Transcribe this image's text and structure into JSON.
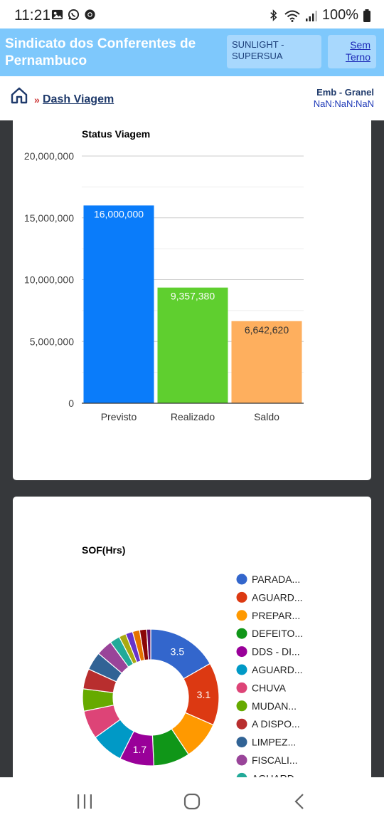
{
  "status_bar": {
    "time": "11:21",
    "battery": "100%",
    "icons": [
      "image-icon",
      "whatsapp-icon",
      "chrome-icon",
      "bluetooth-icon",
      "wifi-icon",
      "signal-icon",
      "battery-icon"
    ]
  },
  "header": {
    "title": "Sindicato dos Conferentes de Pernambuco",
    "ship": "SUNLIGHT - SUPERSUA",
    "terno": "Sem Terno",
    "bg_color": "#7ec8fc"
  },
  "breadcrumb": {
    "separator": "»",
    "current": "Dash Viagem",
    "operation": "Emb - Granel",
    "date": "NaN:NaN:NaN"
  },
  "chart_data": [
    {
      "type": "bar",
      "title": "Status Viagem",
      "categories": [
        "Previsto",
        "Realizado",
        "Saldo"
      ],
      "values": [
        16000000,
        9357380,
        6642620
      ],
      "value_labels": [
        "16,000,000",
        "9,357,380",
        "6,642,620"
      ],
      "colors": [
        "#0a7cfa",
        "#5fcf2f",
        "#feaf5e"
      ],
      "ylim": [
        0,
        20000000
      ],
      "yticks": [
        0,
        5000000,
        10000000,
        15000000,
        20000000
      ],
      "ytick_labels": [
        "0",
        "5,000,000",
        "10,000,000",
        "15,000,000",
        "20,000,000"
      ],
      "grid": true
    },
    {
      "type": "pie",
      "title": "SOF(Hrs)",
      "donut": true,
      "slices": [
        {
          "label": "PARADA...",
          "value": 3.5,
          "color": "#3366cc",
          "show_value": true
        },
        {
          "label": "AGUARD...",
          "value": 3.1,
          "color": "#dc3912",
          "show_value": true
        },
        {
          "label": "PREPAR...",
          "value": 1.9,
          "color": "#ff9900",
          "show_value": false
        },
        {
          "label": "DEFEITO...",
          "value": 1.8,
          "color": "#109618",
          "show_value": false
        },
        {
          "label": "DDS - DI...",
          "value": 1.7,
          "color": "#990099",
          "show_value": true
        },
        {
          "label": "AGUARD...",
          "value": 1.6,
          "color": "#0099c6",
          "show_value": false
        },
        {
          "label": "CHUVA",
          "value": 1.4,
          "color": "#dd4477",
          "show_value": false
        },
        {
          "label": "MUDAN...",
          "value": 1.1,
          "color": "#66aa00",
          "show_value": false
        },
        {
          "label": "A DISPO...",
          "value": 1.0,
          "color": "#b82e2e",
          "show_value": false
        },
        {
          "label": "LIMPEZ...",
          "value": 0.9,
          "color": "#316395",
          "show_value": false
        },
        {
          "label": "FISCALI...",
          "value": 0.8,
          "color": "#994499",
          "show_value": false
        },
        {
          "label": "AGUARD...",
          "value": 0.5,
          "color": "#22aa99",
          "show_value": false
        },
        {
          "label": "",
          "value": 0.35,
          "color": "#aaaa11",
          "show_value": false
        },
        {
          "label": "",
          "value": 0.35,
          "color": "#6633cc",
          "show_value": false
        },
        {
          "label": "",
          "value": 0.35,
          "color": "#e67300",
          "show_value": false
        },
        {
          "label": "",
          "value": 0.35,
          "color": "#8b0707",
          "show_value": false
        },
        {
          "label": "",
          "value": 0.2,
          "color": "#651067",
          "show_value": false
        }
      ],
      "legend_placement": "right",
      "visible_legend_count": 12
    }
  ],
  "nav": {
    "items": [
      "recent-apps-icon",
      "home-circle-icon",
      "back-icon"
    ]
  }
}
